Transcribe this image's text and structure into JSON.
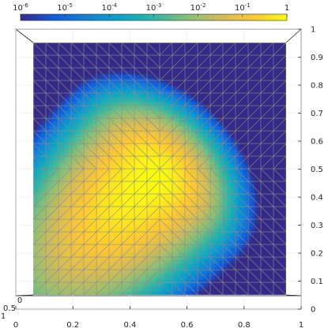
{
  "chart_data": {
    "type": "heatmap",
    "view": "3d-surface-top",
    "title": "",
    "xlabel": "",
    "ylabel": "",
    "zlabel": "",
    "xlim": [
      0,
      1
    ],
    "ylim": [
      0,
      1
    ],
    "x_ticks": [
      "0",
      "0.2",
      "0.4",
      "0.6",
      "0.8",
      "1"
    ],
    "y_ticks": [
      "0",
      "0.1",
      "0.2",
      "0.3",
      "0.4",
      "0.5",
      "0.6",
      "0.7",
      "0.8",
      "0.9",
      "1"
    ],
    "depth_ticks": [
      "0",
      "0.5",
      "1"
    ],
    "grid": true,
    "mesh": "triangular",
    "colorbar": {
      "scale": "log",
      "range": [
        1e-06,
        1
      ],
      "placement": "top",
      "colormap": "parula",
      "ticks": [
        {
          "base": "10",
          "exp": "-6",
          "value": 1e-06
        },
        {
          "base": "10",
          "exp": "-5",
          "value": 1e-05
        },
        {
          "base": "10",
          "exp": "-4",
          "value": 0.0001
        },
        {
          "base": "10",
          "exp": "-3",
          "value": 0.001
        },
        {
          "base": "10",
          "exp": "-2",
          "value": 0.01
        },
        {
          "base": "10",
          "exp": "-1",
          "value": 0.1
        },
        {
          "base": "1",
          "exp": "",
          "value": 1
        }
      ]
    },
    "field": {
      "peak_value": 1,
      "peak_x": 0.48,
      "peak_y": 0.48,
      "major_axis_direction_deg": 45,
      "sigma_major": 0.2,
      "sigma_minor": 0.09,
      "background_value": 1e-06
    },
    "colors": {
      "background_field": "#352a87",
      "mesh_lines": "#8c8c8c",
      "axis_lines": "#262626",
      "grid_lines": "#e6e6e6"
    }
  }
}
